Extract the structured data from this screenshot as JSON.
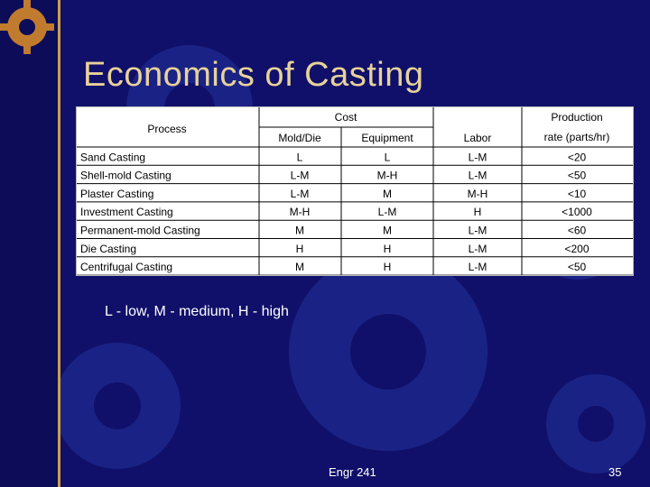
{
  "slide": {
    "title": "Economics of Casting",
    "legend": "L - low, M - medium, H - high",
    "footer_text": "Engr 241",
    "page_number": "35"
  },
  "table": {
    "header_process": "Process",
    "header_cost": "Cost",
    "header_die": "Mold/Die",
    "header_equipment": "Equipment",
    "header_labor": "Labor",
    "header_production_line1": "Production",
    "header_production_line2": "rate (parts/hr)",
    "rows": [
      [
        "Sand Casting",
        "L",
        "L",
        "L-M",
        "<20"
      ],
      [
        "Shell-mold Casting",
        "L-M",
        "M-H",
        "L-M",
        "<50"
      ],
      [
        "Plaster Casting",
        "L-M",
        "M",
        "M-H",
        "<10"
      ],
      [
        "Investment Casting",
        "M-H",
        "L-M",
        "H",
        "<1000"
      ],
      [
        "Permanent-mold Casting",
        "M",
        "M",
        "L-M",
        "<60"
      ],
      [
        "Die Casting",
        "H",
        "H",
        "L-M",
        "<200"
      ],
      [
        "Centrifugal Casting",
        "M",
        "H",
        "L-M",
        "<50"
      ]
    ]
  },
  "colors": {
    "background": "#10106a",
    "title": "#e8d29a",
    "accent_line": "#caa04a",
    "gear": "#2b3e9e"
  }
}
